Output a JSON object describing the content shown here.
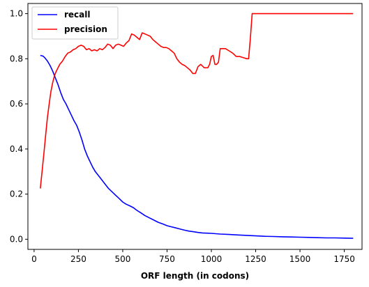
{
  "chart_data": {
    "type": "line",
    "xlabel": "ORF length (in codons)",
    "ylabel": "",
    "xlim": [
      -35,
      1850
    ],
    "ylim": [
      -0.045,
      1.045
    ],
    "xticks": [
      0,
      250,
      500,
      750,
      1000,
      1250,
      1500,
      1750
    ],
    "yticks": [
      0.0,
      0.2,
      0.4,
      0.6,
      0.8,
      1.0
    ],
    "xtick_labels": [
      "0",
      "250",
      "500",
      "750",
      "1000",
      "1250",
      "1500",
      "1750"
    ],
    "ytick_labels": [
      "0.0",
      "0.2",
      "0.4",
      "0.6",
      "0.8",
      "1.0"
    ],
    "grid": false,
    "legend_position": "top-left",
    "series": [
      {
        "name": "recall",
        "color": "#0000ff",
        "x": [
          35,
          50,
          60,
          75,
          90,
          105,
          120,
          135,
          150,
          165,
          180,
          195,
          210,
          225,
          240,
          255,
          270,
          285,
          300,
          315,
          330,
          345,
          360,
          380,
          400,
          420,
          440,
          460,
          480,
          500,
          520,
          540,
          560,
          580,
          600,
          625,
          650,
          675,
          700,
          725,
          750,
          775,
          800,
          825,
          850,
          875,
          900,
          925,
          950,
          975,
          1000,
          1050,
          1100,
          1150,
          1200,
          1250,
          1300,
          1350,
          1400,
          1450,
          1500,
          1550,
          1600,
          1650,
          1700,
          1750,
          1800
        ],
        "y": [
          0.815,
          0.812,
          0.805,
          0.79,
          0.77,
          0.745,
          0.715,
          0.685,
          0.65,
          0.62,
          0.6,
          0.575,
          0.55,
          0.525,
          0.505,
          0.475,
          0.44,
          0.4,
          0.37,
          0.345,
          0.32,
          0.3,
          0.285,
          0.265,
          0.245,
          0.225,
          0.21,
          0.195,
          0.18,
          0.165,
          0.155,
          0.148,
          0.14,
          0.128,
          0.118,
          0.105,
          0.095,
          0.085,
          0.075,
          0.068,
          0.06,
          0.055,
          0.05,
          0.045,
          0.04,
          0.036,
          0.033,
          0.03,
          0.028,
          0.027,
          0.026,
          0.023,
          0.021,
          0.019,
          0.017,
          0.015,
          0.013,
          0.012,
          0.011,
          0.01,
          0.009,
          0.008,
          0.007,
          0.006,
          0.006,
          0.005,
          0.004
        ]
      },
      {
        "name": "precision",
        "color": "#ff0000",
        "x": [
          35,
          45,
          55,
          65,
          75,
          85,
          95,
          105,
          115,
          125,
          135,
          145,
          160,
          175,
          190,
          205,
          220,
          235,
          250,
          265,
          280,
          295,
          310,
          325,
          340,
          355,
          370,
          385,
          400,
          415,
          430,
          445,
          460,
          475,
          490,
          505,
          520,
          535,
          550,
          565,
          580,
          595,
          610,
          625,
          640,
          655,
          670,
          685,
          700,
          715,
          730,
          745,
          760,
          775,
          790,
          805,
          820,
          835,
          850,
          865,
          880,
          895,
          910,
          925,
          940,
          960,
          980,
          990,
          1000,
          1010,
          1020,
          1030,
          1040,
          1050,
          1060,
          1080,
          1100,
          1120,
          1140,
          1160,
          1180,
          1200,
          1210,
          1220,
          1220,
          1230,
          1250,
          1300,
          1400,
          1500,
          1600,
          1700,
          1800
        ],
        "y": [
          0.225,
          0.3,
          0.38,
          0.46,
          0.54,
          0.6,
          0.655,
          0.695,
          0.725,
          0.745,
          0.76,
          0.775,
          0.79,
          0.81,
          0.825,
          0.83,
          0.84,
          0.845,
          0.855,
          0.86,
          0.855,
          0.84,
          0.845,
          0.835,
          0.84,
          0.835,
          0.845,
          0.84,
          0.85,
          0.865,
          0.86,
          0.845,
          0.86,
          0.865,
          0.86,
          0.855,
          0.87,
          0.88,
          0.91,
          0.905,
          0.895,
          0.885,
          0.915,
          0.91,
          0.905,
          0.9,
          0.885,
          0.875,
          0.865,
          0.855,
          0.85,
          0.85,
          0.845,
          0.835,
          0.825,
          0.8,
          0.785,
          0.775,
          0.77,
          0.76,
          0.75,
          0.735,
          0.735,
          0.765,
          0.775,
          0.76,
          0.76,
          0.775,
          0.81,
          0.815,
          0.775,
          0.775,
          0.785,
          0.845,
          0.845,
          0.845,
          0.835,
          0.825,
          0.81,
          0.81,
          0.805,
          0.8,
          0.8,
          0.89,
          0.89,
          1.0,
          1.0,
          1.0,
          1.0,
          1.0,
          1.0,
          1.0,
          1.0
        ]
      }
    ]
  }
}
